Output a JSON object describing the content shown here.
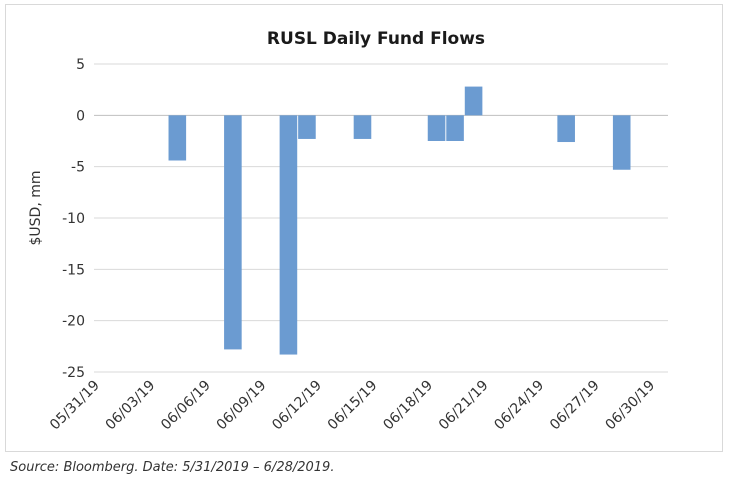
{
  "source_note": "Source: Bloomberg. Date: 5/31/2019 – 6/28/2019.",
  "chart_data": {
    "type": "bar",
    "title": "RUSL Daily Fund Flows",
    "xlabel": "",
    "ylabel": "$USD, mm",
    "ylim": [
      -25,
      5
    ],
    "yticks": [
      5,
      0,
      -5,
      -10,
      -15,
      -20,
      -25
    ],
    "grid": true,
    "legend": "none",
    "bar_color": "#6b9bd1",
    "xlim": [
      "05/31/19",
      "07/01/19"
    ],
    "x_tick_labels": [
      "05/31/19",
      "06/03/19",
      "06/06/19",
      "06/09/19",
      "06/12/19",
      "06/15/19",
      "06/18/19",
      "06/21/19",
      "06/24/19",
      "06/27/19",
      "06/30/19"
    ],
    "points": [
      {
        "date": "06/04/19",
        "value": -4.4
      },
      {
        "date": "06/07/19",
        "value": -22.8
      },
      {
        "date": "06/10/19",
        "value": -23.3
      },
      {
        "date": "06/11/19",
        "value": -2.3
      },
      {
        "date": "06/14/19",
        "value": -2.3
      },
      {
        "date": "06/18/19",
        "value": -2.5
      },
      {
        "date": "06/19/19",
        "value": -2.5
      },
      {
        "date": "06/20/19",
        "value": 2.8
      },
      {
        "date": "06/25/19",
        "value": -2.6
      },
      {
        "date": "06/28/19",
        "value": -5.3
      }
    ]
  }
}
